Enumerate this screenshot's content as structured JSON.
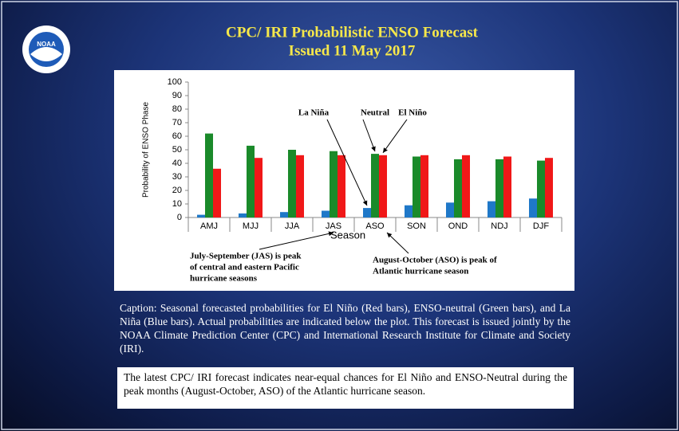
{
  "logo": "NOAA",
  "chart_data": {
    "type": "bar",
    "title": "CPC/ IRI Probabilistic ENSO Forecast",
    "subtitle": "Issued 11 May 2017",
    "ylabel": "Probability of ENSO Phase",
    "xlabel": "Season",
    "categories": [
      "AMJ",
      "MJJ",
      "JJA",
      "JAS",
      "ASO",
      "SON",
      "OND",
      "NDJ",
      "DJF"
    ],
    "series": [
      {
        "name": "La Niña",
        "color": "#1f78c8",
        "values": [
          2,
          3,
          4,
          5,
          7,
          9,
          11,
          12,
          14
        ]
      },
      {
        "name": "Neutral",
        "color": "#1a8a2a",
        "values": [
          62,
          53,
          50,
          49,
          47,
          45,
          43,
          43,
          42
        ]
      },
      {
        "name": "El Niño",
        "color": "#f01818",
        "values": [
          36,
          44,
          46,
          46,
          46,
          46,
          46,
          45,
          44
        ]
      }
    ],
    "ylim": [
      0,
      100
    ],
    "yticks": [
      0,
      10,
      20,
      30,
      40,
      50,
      60,
      70,
      80,
      90,
      100
    ],
    "grid": false,
    "annotations": [
      {
        "lines": [
          "July-September (JAS) is peak",
          "of central and eastern Pacific",
          "hurricane seasons"
        ]
      },
      {
        "lines": [
          "August-October (ASO) is peak of",
          "Atlantic hurricane season"
        ]
      }
    ]
  },
  "caption": "Caption: Seasonal forecasted probabilities for El Niño (Red bars), ENSO-neutral (Green bars), and La Niña (Blue bars). Actual probabilities are indicated below the plot. This forecast is issued jointly by the NOAA Climate Prediction Center (CPC) and International Research Institute for Climate and Society (IRI).",
  "summary": "The latest CPC/ IRI forecast indicates near-equal chances for El Niño and ENSO-Neutral during the peak months (August-October, ASO) of the Atlantic hurricane season."
}
